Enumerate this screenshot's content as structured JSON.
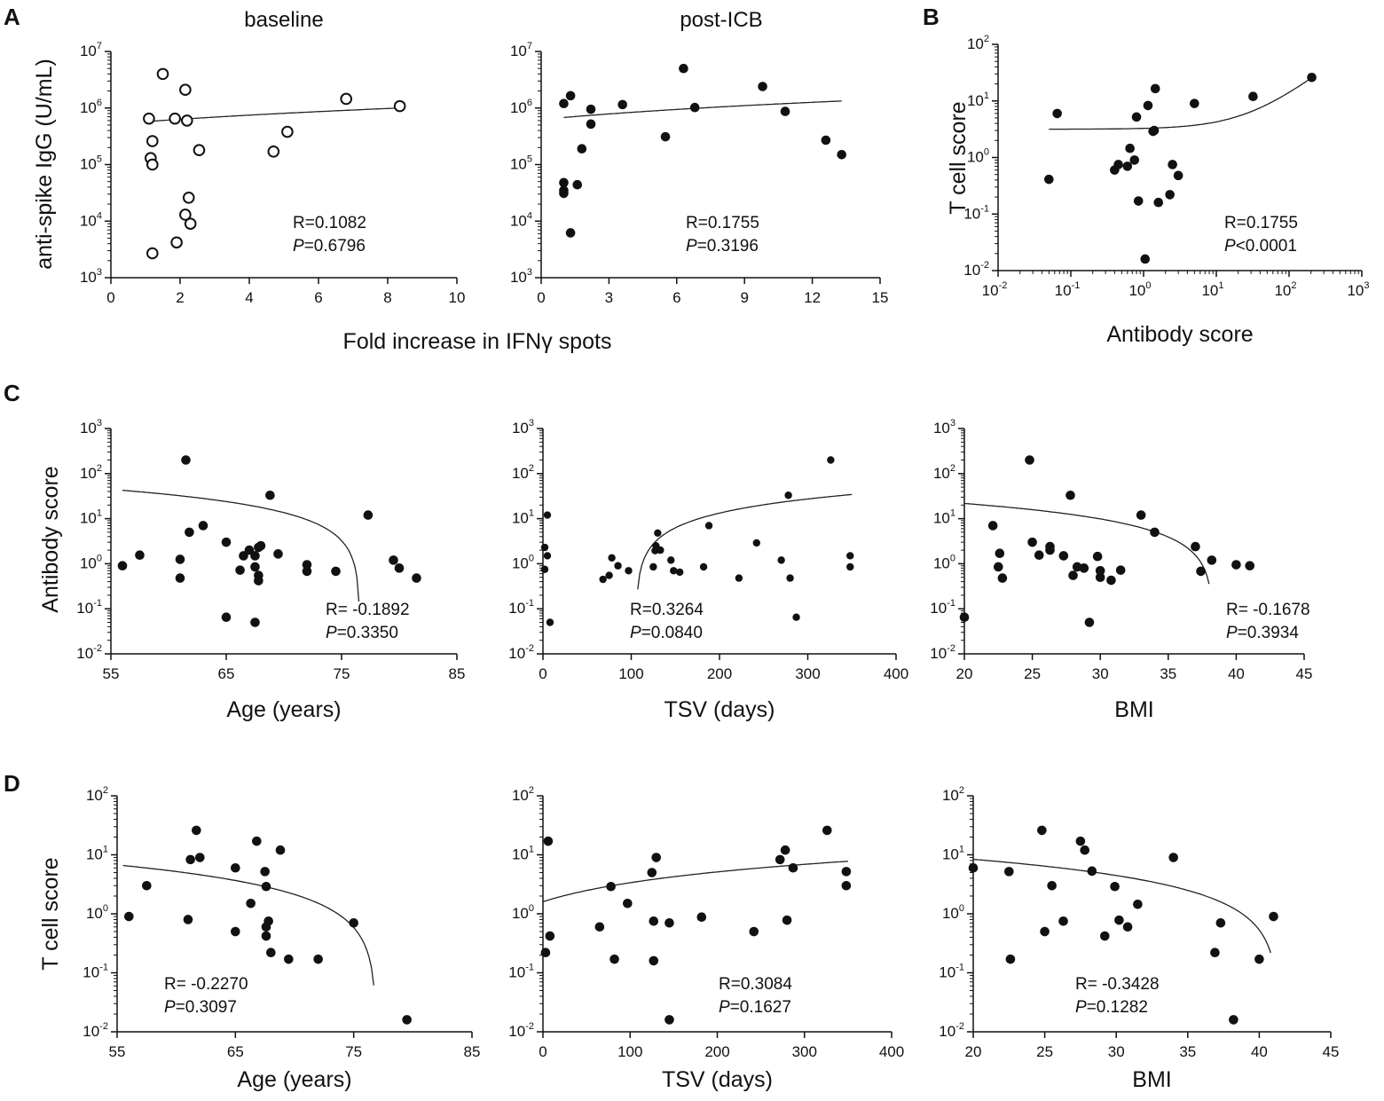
{
  "figure": {
    "shared_xlabel_A": "Fold increase in IFNγ spots"
  },
  "chart_data": [
    {
      "id": "A1",
      "panel_letter": "A",
      "type": "scatter",
      "title": "baseline",
      "xlabel": "",
      "ylabel": "anti-spike IgG (U/mL)",
      "xscale": "linear",
      "yscale": "log",
      "xlim": [
        0,
        10
      ],
      "ylim": [
        1000,
        10000000
      ],
      "xticks": [
        "0",
        "2",
        "4",
        "6",
        "8",
        "10"
      ],
      "yticks_exp": [
        "3",
        "4",
        "5",
        "6",
        "7"
      ],
      "marker": "open",
      "points": [
        [
          1.1,
          650000
        ],
        [
          1.2,
          260000
        ],
        [
          1.15,
          130000
        ],
        [
          1.2,
          100000
        ],
        [
          1.5,
          4000000
        ],
        [
          1.85,
          650000
        ],
        [
          2.15,
          2100000
        ],
        [
          2.2,
          600000
        ],
        [
          2.55,
          180000
        ],
        [
          2.25,
          26000
        ],
        [
          2.15,
          13000
        ],
        [
          2.3,
          9000
        ],
        [
          1.9,
          4200
        ],
        [
          1.2,
          2700
        ],
        [
          4.7,
          170000
        ],
        [
          5.1,
          380000
        ],
        [
          6.8,
          1450000
        ],
        [
          8.35,
          1080000
        ]
      ],
      "fit": {
        "kind": "linear",
        "x0": 1.1,
        "x1": 8.35,
        "y0": 580000,
        "y1": 1000000
      },
      "stats": {
        "R": "R=0.1082",
        "P_label": "P",
        "P_value": "=0.6796"
      }
    },
    {
      "id": "A2",
      "type": "scatter",
      "title": "post-ICB",
      "xlabel": "",
      "ylabel": "",
      "xscale": "linear",
      "yscale": "log",
      "xlim": [
        0,
        15
      ],
      "ylim": [
        1000,
        10000000
      ],
      "xticks": [
        "0",
        "3",
        "6",
        "9",
        "12",
        "15"
      ],
      "yticks_exp": [
        "3",
        "4",
        "5",
        "6",
        "7"
      ],
      "marker": "filled",
      "points": [
        [
          1.0,
          1200000
        ],
        [
          1.3,
          1650000
        ],
        [
          1.0,
          48000
        ],
        [
          1.0,
          35000
        ],
        [
          1.0,
          31000
        ],
        [
          1.3,
          6200
        ],
        [
          1.6,
          44000
        ],
        [
          1.8,
          190000
        ],
        [
          2.2,
          950000
        ],
        [
          2.2,
          520000
        ],
        [
          3.6,
          1150000
        ],
        [
          5.5,
          310000
        ],
        [
          6.3,
          5000000
        ],
        [
          6.8,
          1020000
        ],
        [
          9.8,
          2400000
        ],
        [
          10.8,
          870000
        ],
        [
          12.6,
          270000
        ],
        [
          13.3,
          150000
        ]
      ],
      "fit": {
        "kind": "linear",
        "x0": 1.0,
        "x1": 13.3,
        "y0": 680000,
        "y1": 1330000
      },
      "stats": {
        "R": "R=0.1755",
        "P_label": "P",
        "P_value": "=0.3196"
      }
    },
    {
      "id": "B",
      "panel_letter": "B",
      "type": "scatter",
      "title": "",
      "xlabel": "Antibody score",
      "ylabel": "T cell score",
      "xscale": "log",
      "yscale": "log",
      "xlim": [
        0.01,
        1000
      ],
      "ylim": [
        0.01,
        100
      ],
      "xticks_exp": [
        "-2",
        "-1",
        "0",
        "1",
        "2",
        "3"
      ],
      "yticks_exp": [
        "-2",
        "-1",
        "0",
        "1",
        "2"
      ],
      "marker": "filled",
      "points": [
        [
          0.05,
          0.41
        ],
        [
          0.065,
          6.0
        ],
        [
          0.4,
          0.6
        ],
        [
          0.45,
          0.75
        ],
        [
          0.6,
          0.7
        ],
        [
          0.65,
          1.45
        ],
        [
          0.75,
          0.9
        ],
        [
          0.8,
          5.2
        ],
        [
          0.85,
          0.17
        ],
        [
          1.05,
          0.016
        ],
        [
          1.15,
          8.3
        ],
        [
          1.35,
          2.9
        ],
        [
          1.4,
          3.0
        ],
        [
          1.45,
          16.5
        ],
        [
          1.6,
          0.16
        ],
        [
          2.3,
          0.22
        ],
        [
          2.5,
          0.75
        ],
        [
          3.0,
          0.48
        ],
        [
          5.0,
          9.0
        ],
        [
          32,
          12.0
        ],
        [
          205,
          26.0
        ]
      ],
      "fit": {
        "kind": "linear-in-data",
        "x0": 0.05,
        "x1": 205,
        "a": 3.16,
        "b": 0.1101
      },
      "stats": {
        "R": "R=0.1755",
        "P_label": "P",
        "P_value": "<0.0001"
      }
    },
    {
      "id": "C1",
      "panel_letter": "C",
      "type": "scatter",
      "title": "",
      "xlabel": "Age (years)",
      "ylabel": "Antibody score",
      "xscale": "linear",
      "yscale": "log",
      "xlim": [
        55,
        85
      ],
      "ylim": [
        0.01,
        1000
      ],
      "xticks": [
        "55",
        "65",
        "75",
        "85"
      ],
      "yticks_exp": [
        "-2",
        "-1",
        "0",
        "1",
        "2",
        "3"
      ],
      "marker": "filled",
      "points": [
        [
          56,
          0.9
        ],
        [
          57.5,
          1.55
        ],
        [
          61,
          1.25
        ],
        [
          61,
          0.48
        ],
        [
          61.5,
          200
        ],
        [
          61.8,
          5.0
        ],
        [
          63,
          7.0
        ],
        [
          65,
          3.0
        ],
        [
          65,
          0.065
        ],
        [
          66.2,
          0.72
        ],
        [
          66.5,
          1.5
        ],
        [
          67,
          2.0
        ],
        [
          67.5,
          0.85
        ],
        [
          67.5,
          1.5
        ],
        [
          67.8,
          0.55
        ],
        [
          67.8,
          0.42
        ],
        [
          67.5,
          0.05
        ],
        [
          67.8,
          2.3
        ],
        [
          68,
          2.5
        ],
        [
          68.8,
          33
        ],
        [
          69.5,
          1.65
        ],
        [
          72,
          0.95
        ],
        [
          72,
          0.68
        ],
        [
          74.5,
          0.68
        ],
        [
          77.3,
          12.0
        ],
        [
          79.5,
          1.2
        ],
        [
          80,
          0.8
        ],
        [
          81.5,
          0.48
        ]
      ],
      "fit": {
        "kind": "linear-in-data",
        "x0": 56,
        "x1": 76.5,
        "a": 158.5,
        "b": -2.07
      },
      "stats": {
        "R": "R= -0.1892",
        "P_label": "P",
        "P_value": "=0.3350"
      }
    },
    {
      "id": "C2",
      "type": "scatter",
      "title": "",
      "xlabel": "TSV (days)",
      "ylabel": "",
      "xscale": "linear",
      "yscale": "log",
      "xlim": [
        0,
        400
      ],
      "ylim": [
        0.01,
        1000
      ],
      "xticks": [
        "0",
        "100",
        "200",
        "300",
        "400"
      ],
      "yticks_exp": [
        "-2",
        "-1",
        "0",
        "1",
        "2",
        "3"
      ],
      "marker": "filled-small",
      "points": [
        [
          2,
          0.75
        ],
        [
          2,
          2.3
        ],
        [
          5,
          12.0
        ],
        [
          5,
          1.5
        ],
        [
          8,
          0.05
        ],
        [
          68,
          0.45
        ],
        [
          75,
          0.55
        ],
        [
          78,
          1.35
        ],
        [
          85,
          0.9
        ],
        [
          97,
          0.7
        ],
        [
          125,
          0.85
        ],
        [
          127,
          1.95
        ],
        [
          128,
          2.5
        ],
        [
          130,
          4.8
        ],
        [
          133,
          2.0
        ],
        [
          145,
          1.2
        ],
        [
          148,
          0.7
        ],
        [
          155,
          0.65
        ],
        [
          182,
          0.85
        ],
        [
          188,
          7.0
        ],
        [
          222,
          0.48
        ],
        [
          242,
          2.9
        ],
        [
          270,
          1.2
        ],
        [
          278,
          33
        ],
        [
          280,
          0.48
        ],
        [
          287,
          0.065
        ],
        [
          326,
          200
        ],
        [
          348,
          1.5
        ],
        [
          348,
          0.85
        ]
      ],
      "fit": {
        "kind": "linear-in-data",
        "x0": 70,
        "x1": 350,
        "a": -14.8,
        "b": 0.1404
      },
      "stats": {
        "R": "R=0.3264",
        "P_label": "P",
        "P_value": "=0.0840"
      }
    },
    {
      "id": "C3",
      "type": "scatter",
      "title": "",
      "xlabel": "BMI",
      "ylabel": "",
      "xscale": "linear",
      "yscale": "log",
      "xlim": [
        20,
        45
      ],
      "ylim": [
        0.01,
        1000
      ],
      "xticks": [
        "20",
        "25",
        "30",
        "35",
        "40",
        "45"
      ],
      "yticks_exp": [
        "-2",
        "-1",
        "0",
        "1",
        "2",
        "3"
      ],
      "marker": "filled",
      "points": [
        [
          20,
          0.065
        ],
        [
          22.1,
          7.0
        ],
        [
          22.5,
          0.85
        ],
        [
          22.6,
          1.7
        ],
        [
          22.8,
          0.48
        ],
        [
          24.8,
          200
        ],
        [
          25.0,
          3.0
        ],
        [
          25.5,
          1.55
        ],
        [
          26.3,
          2.4
        ],
        [
          26.3,
          2.0
        ],
        [
          27.3,
          1.5
        ],
        [
          27.8,
          33
        ],
        [
          28.0,
          0.55
        ],
        [
          28.3,
          0.85
        ],
        [
          28.8,
          0.8
        ],
        [
          29.2,
          0.05
        ],
        [
          29.8,
          1.45
        ],
        [
          30.0,
          0.5
        ],
        [
          30.0,
          0.7
        ],
        [
          30.8,
          0.43
        ],
        [
          31.5,
          0.72
        ],
        [
          33.0,
          12.0
        ],
        [
          34.0,
          5.0
        ],
        [
          37.0,
          2.4
        ],
        [
          37.4,
          0.68
        ],
        [
          38.2,
          1.2
        ],
        [
          40.0,
          0.95
        ],
        [
          41.0,
          0.9
        ]
      ],
      "fit": {
        "kind": "linear-in-data",
        "x0": 20,
        "x1": 38.0,
        "a": 45.5,
        "b": -1.188
      },
      "stats": {
        "R": "R= -0.1678",
        "P_label": "P",
        "P_value": "=0.3934"
      }
    },
    {
      "id": "D1",
      "panel_letter": "D",
      "type": "scatter",
      "title": "",
      "xlabel": "Age (years)",
      "ylabel": "T cell score",
      "xscale": "linear",
      "yscale": "log",
      "xlim": [
        55,
        85
      ],
      "ylim": [
        0.01,
        100
      ],
      "xticks": [
        "55",
        "65",
        "75",
        "85"
      ],
      "yticks_exp": [
        "-2",
        "-1",
        "0",
        "1",
        "2"
      ],
      "marker": "filled",
      "points": [
        [
          56,
          0.9
        ],
        [
          57.5,
          3.0
        ],
        [
          61,
          0.8
        ],
        [
          61.2,
          8.3
        ],
        [
          61.7,
          26
        ],
        [
          62,
          9.0
        ],
        [
          65,
          6.0
        ],
        [
          65,
          0.5
        ],
        [
          66.3,
          1.5
        ],
        [
          66.8,
          17
        ],
        [
          67.5,
          5.2
        ],
        [
          67.6,
          2.9
        ],
        [
          67.8,
          0.75
        ],
        [
          67.6,
          0.6
        ],
        [
          67.6,
          0.42
        ],
        [
          68,
          0.22
        ],
        [
          68.8,
          12.0
        ],
        [
          69.5,
          0.17
        ],
        [
          72,
          0.17
        ],
        [
          75,
          0.7
        ],
        [
          79.5,
          0.016
        ]
      ],
      "fit": {
        "kind": "linear-in-data",
        "x0": 55.5,
        "x1": 79.5,
        "a": 23.7,
        "b": -0.3082
      },
      "stats": {
        "R": "R= -0.2270",
        "P_label": "P",
        "P_value": "=0.3097"
      }
    },
    {
      "id": "D2",
      "type": "scatter",
      "title": "",
      "xlabel": "TSV (days)",
      "ylabel": "",
      "xscale": "linear",
      "yscale": "log",
      "xlim": [
        0,
        400
      ],
      "ylim": [
        0.01,
        100
      ],
      "xticks": [
        "0",
        "100",
        "200",
        "300",
        "400"
      ],
      "yticks_exp": [
        "-2",
        "-1",
        "0",
        "1",
        "2"
      ],
      "marker": "filled",
      "points": [
        [
          3,
          0.22
        ],
        [
          6,
          17
        ],
        [
          8,
          0.42
        ],
        [
          65,
          0.6
        ],
        [
          78,
          2.9
        ],
        [
          82,
          0.17
        ],
        [
          97,
          1.5
        ],
        [
          125,
          5.0
        ],
        [
          127,
          0.75
        ],
        [
          127,
          0.16
        ],
        [
          130,
          9.0
        ],
        [
          145,
          0.7
        ],
        [
          145,
          0.016
        ],
        [
          182,
          0.88
        ],
        [
          242,
          0.5
        ],
        [
          272,
          8.3
        ],
        [
          278,
          12
        ],
        [
          280,
          0.78
        ],
        [
          287,
          6.0
        ],
        [
          326,
          26
        ],
        [
          348,
          5.2
        ],
        [
          348,
          3.0
        ]
      ],
      "fit": {
        "kind": "linear-in-data",
        "x0": 0,
        "x1": 350,
        "a": 1.6,
        "b": 0.01764
      },
      "stats": {
        "R": "R=0.3084",
        "P_label": "P",
        "P_value": "=0.1627"
      }
    },
    {
      "id": "D3",
      "type": "scatter",
      "title": "",
      "xlabel": "BMI",
      "ylabel": "",
      "xscale": "linear",
      "yscale": "log",
      "xlim": [
        20,
        45
      ],
      "ylim": [
        0.01,
        100
      ],
      "xticks": [
        "20",
        "25",
        "30",
        "35",
        "40",
        "45"
      ],
      "yticks_exp": [
        "-2",
        "-1",
        "0",
        "1",
        "2"
      ],
      "marker": "filled",
      "points": [
        [
          20,
          6.0
        ],
        [
          22.5,
          5.2
        ],
        [
          22.6,
          0.17
        ],
        [
          24.8,
          26
        ],
        [
          25.0,
          0.5
        ],
        [
          25.5,
          3.0
        ],
        [
          26.3,
          0.75
        ],
        [
          27.5,
          17
        ],
        [
          27.8,
          12
        ],
        [
          28.3,
          5.3
        ],
        [
          29.2,
          0.42
        ],
        [
          29.9,
          2.9
        ],
        [
          30.2,
          0.78
        ],
        [
          30.8,
          0.6
        ],
        [
          31.5,
          1.45
        ],
        [
          34.0,
          9.0
        ],
        [
          36.9,
          0.22
        ],
        [
          37.3,
          0.7
        ],
        [
          38.2,
          0.016
        ],
        [
          40.0,
          0.17
        ],
        [
          41.0,
          0.9
        ]
      ],
      "fit": {
        "kind": "linear-in-data",
        "x0": 20,
        "x1": 40.8,
        "a": 16.24,
        "b": -0.3927
      },
      "stats": {
        "R": "R= -0.3428",
        "P_label": "P",
        "P_value": "=0.1282"
      }
    }
  ]
}
